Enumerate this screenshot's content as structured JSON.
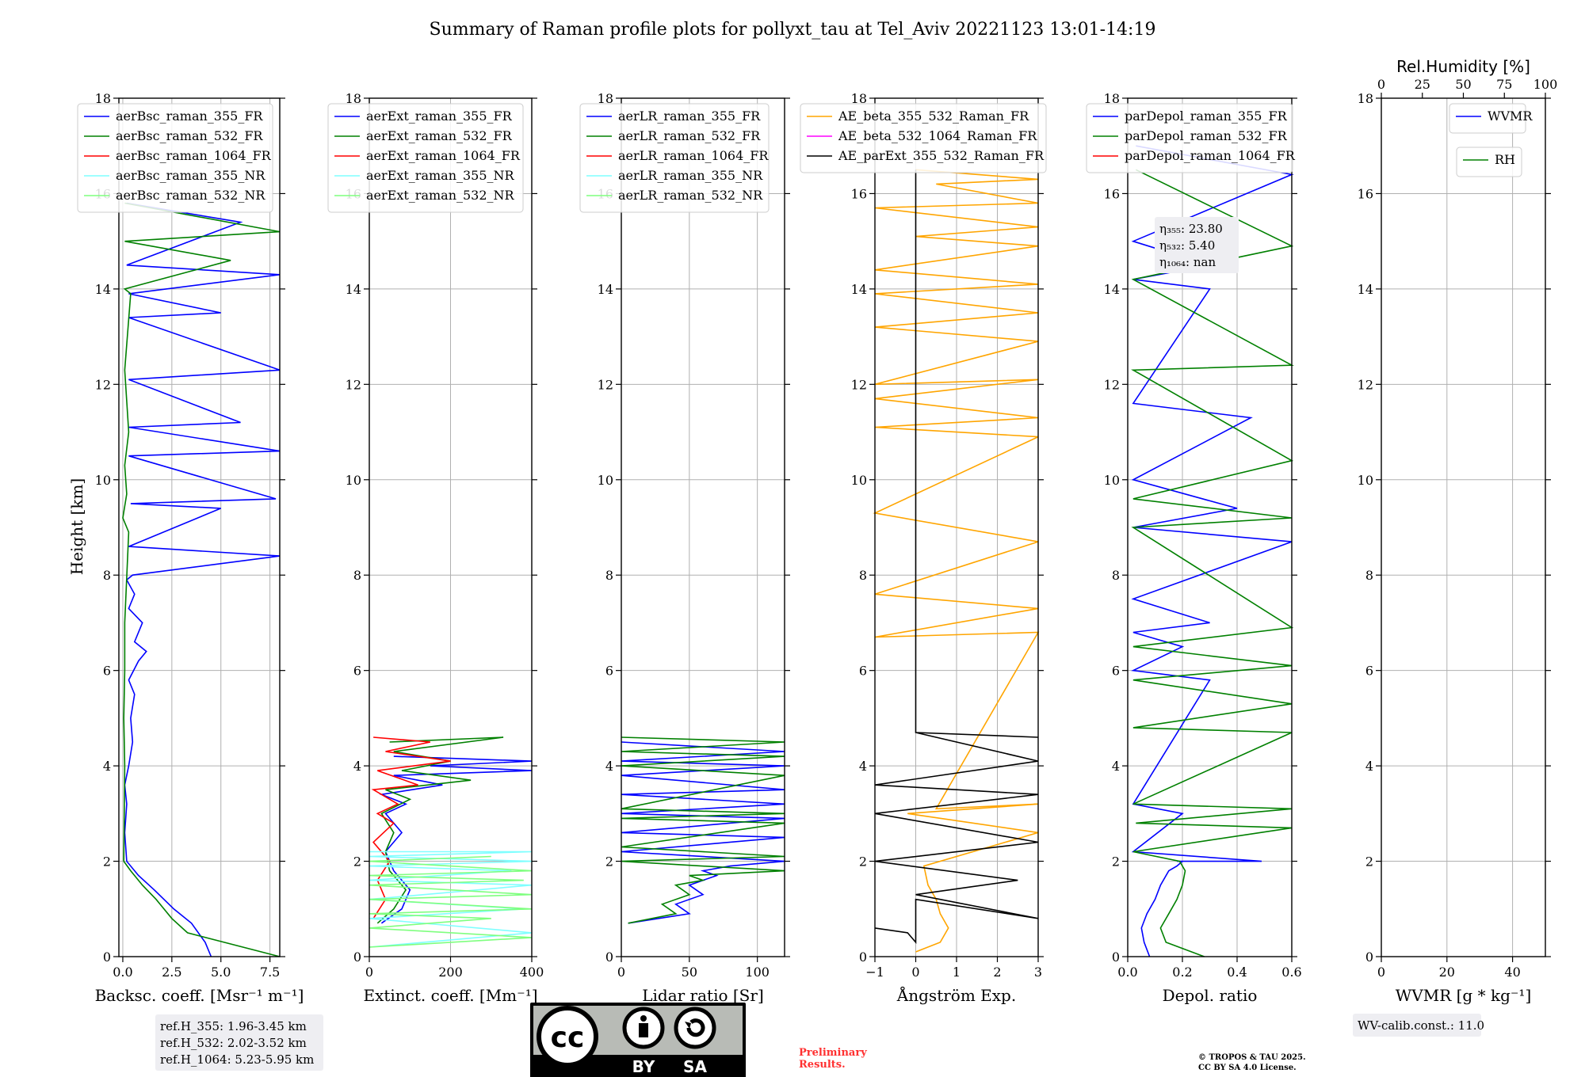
{
  "title": "Summary of Raman profile plots for pollyxt_tau at Tel_Aviv 20221123 13:01-14:19",
  "ylabel": "Height [km]",
  "ylim": [
    0,
    18
  ],
  "yticks": [
    0,
    2,
    4,
    6,
    8,
    10,
    12,
    14,
    16,
    18
  ],
  "colors": {
    "blue": "#0000ff",
    "green": "#008000",
    "red": "#ff0000",
    "cyan": "#7fffff",
    "lightgreen": "#7fff7f",
    "orange": "#ffa500",
    "magenta": "#ff00ff",
    "black": "#000000"
  },
  "chart_data": [
    {
      "type": "line",
      "xlabel": "Backsc. coeff. [Msr⁻¹ m⁻¹]",
      "xlim": [
        -0.2,
        8
      ],
      "xticks": [
        0,
        2.5,
        5,
        7.5
      ],
      "xtick_labels": [
        "0.0",
        "2.5",
        "5.0",
        "7.5"
      ],
      "legend": [
        "aerBsc_raman_355_FR",
        "aerBsc_raman_532_FR",
        "aerBsc_raman_1064_FR",
        "aerBsc_raman_355_NR",
        "aerBsc_raman_532_NR"
      ],
      "legend_colors": [
        "blue",
        "green",
        "red",
        "cyan",
        "lightgreen"
      ],
      "series": [
        {
          "name": "aerBsc_raman_355_FR",
          "color": "blue",
          "x": [
            4.5,
            4.2,
            3.5,
            2.6,
            1.6,
            0.8,
            0.2,
            0.1,
            0.2,
            0.1,
            0.3,
            0.5,
            0.4,
            0.6,
            0.3,
            0.8,
            1.2,
            0.6,
            1.0,
            0.3,
            0.6,
            0.2,
            0.5,
            8.0,
            0.3,
            5.0,
            0.4,
            7.8,
            0.3,
            8.0,
            0.3,
            6.0,
            0.3,
            8.0,
            0.3,
            5.0,
            0.3,
            8.0,
            0.2,
            6.0,
            0.2
          ],
          "y": [
            0.0,
            0.3,
            0.7,
            1.0,
            1.4,
            1.7,
            2.0,
            2.6,
            3.2,
            3.6,
            4.0,
            4.5,
            5.0,
            5.5,
            5.8,
            6.2,
            6.4,
            6.6,
            7.0,
            7.3,
            7.6,
            7.9,
            8.0,
            8.4,
            8.6,
            9.4,
            9.5,
            9.6,
            10.5,
            10.6,
            11.1,
            11.2,
            12.1,
            12.3,
            13.4,
            13.5,
            13.9,
            14.3,
            14.5,
            15.4,
            15.8
          ]
        },
        {
          "name": "aerBsc_raman_532_FR",
          "color": "green",
          "x": [
            8.0,
            3.3,
            2.5,
            1.7,
            1.0,
            0.4,
            0.05,
            0.1,
            0.05,
            0.1,
            0.1,
            0.3,
            0.0,
            0.2,
            0.1,
            0.3,
            0.1,
            0.4,
            0.1,
            5.5,
            0.1,
            8.0,
            0.1
          ],
          "y": [
            0.0,
            0.5,
            0.8,
            1.2,
            1.5,
            1.8,
            2.0,
            4.0,
            5.0,
            6.0,
            7.0,
            8.9,
            9.2,
            9.7,
            10.3,
            11.0,
            12.3,
            13.9,
            14.0,
            14.6,
            15.0,
            15.2,
            15.8
          ]
        }
      ],
      "annotation": [
        "ref.H_355: 1.96-3.45 km",
        "ref.H_532: 2.02-3.52 km",
        "ref.H_1064: 5.23-5.95 km"
      ]
    },
    {
      "type": "line",
      "xlabel": "Extinct. coeff. [Mm⁻¹]",
      "xlim": [
        0,
        400
      ],
      "xticks": [
        0,
        200,
        400
      ],
      "xtick_labels": [
        "0",
        "200",
        "400"
      ],
      "legend": [
        "aerExt_raman_355_FR",
        "aerExt_raman_532_FR",
        "aerExt_raman_1064_FR",
        "aerExt_raman_355_NR",
        "aerExt_raman_532_NR"
      ],
      "legend_colors": [
        "blue",
        "green",
        "red",
        "cyan",
        "lightgreen"
      ],
      "series": [
        {
          "name": "aerExt_raman_355_FR",
          "color": "blue",
          "x": [
            30,
            80,
            100,
            60,
            40,
            80,
            40,
            90,
            30,
            180,
            60,
            400,
            150,
            400,
            60
          ],
          "y": [
            0.7,
            1.0,
            1.4,
            1.8,
            2.2,
            2.6,
            3.0,
            3.2,
            3.4,
            3.6,
            3.8,
            3.9,
            4.0,
            4.1,
            4.2
          ]
        },
        {
          "name": "aerExt_raman_532_FR",
          "color": "green",
          "x": [
            20,
            60,
            90,
            50,
            40,
            60,
            30,
            100,
            40,
            250,
            80,
            200,
            60,
            330,
            50
          ],
          "y": [
            0.7,
            1.0,
            1.4,
            1.8,
            2.2,
            2.6,
            3.0,
            3.3,
            3.5,
            3.7,
            3.9,
            4.1,
            4.3,
            4.6,
            4.5
          ]
        },
        {
          "name": "aerExt_raman_1064_FR",
          "color": "red",
          "x": [
            10,
            40,
            20,
            50,
            10,
            60,
            20,
            70,
            10,
            120,
            20,
            200,
            40,
            150,
            10
          ],
          "y": [
            0.8,
            1.2,
            1.6,
            2.0,
            2.4,
            2.8,
            3.0,
            3.2,
            3.5,
            3.6,
            3.9,
            4.1,
            4.3,
            4.5,
            4.6
          ]
        },
        {
          "name": "aerExt_raman_355_NR",
          "color": "cyan",
          "x": [
            0,
            400,
            0,
            380,
            0,
            400,
            0,
            350,
            0,
            400,
            0,
            400,
            0
          ],
          "y": [
            0.2,
            0.5,
            0.8,
            1.0,
            1.2,
            1.5,
            1.6,
            1.8,
            1.9,
            2.0,
            2.1,
            2.2,
            2.2
          ]
        },
        {
          "name": "aerExt_raman_532_NR",
          "color": "lightgreen",
          "x": [
            0,
            400,
            0,
            300,
            0,
            400,
            0,
            400,
            0,
            380,
            0,
            400,
            0,
            300
          ],
          "y": [
            0.2,
            0.4,
            0.6,
            0.8,
            0.9,
            1.0,
            1.2,
            1.3,
            1.5,
            1.6,
            1.7,
            1.8,
            2.0,
            2.1
          ]
        }
      ]
    },
    {
      "type": "line",
      "xlabel": "Lidar ratio [Sr]",
      "xlim": [
        0,
        120
      ],
      "xticks": [
        0,
        50,
        100
      ],
      "xtick_labels": [
        "0",
        "50",
        "100"
      ],
      "legend": [
        "aerLR_raman_355_FR",
        "aerLR_raman_532_FR",
        "aerLR_raman_1064_FR",
        "aerLR_raman_355_NR",
        "aerLR_raman_532_NR"
      ],
      "legend_colors": [
        "blue",
        "green",
        "red",
        "cyan",
        "lightgreen"
      ],
      "series": [
        {
          "name": "aerLR_raman_355_FR",
          "color": "blue",
          "x": [
            5,
            50,
            40,
            60,
            50,
            70,
            60,
            80,
            120,
            0,
            120,
            0,
            120,
            0,
            120,
            0,
            120,
            0,
            120,
            0,
            120,
            0
          ],
          "y": [
            0.7,
            0.9,
            1.1,
            1.3,
            1.5,
            1.7,
            1.8,
            1.9,
            2.0,
            2.2,
            2.5,
            2.6,
            2.9,
            3.0,
            3.2,
            3.4,
            3.5,
            3.8,
            4.0,
            4.1,
            4.3,
            4.5
          ]
        },
        {
          "name": "aerLR_raman_532_FR",
          "color": "green",
          "x": [
            5,
            40,
            30,
            50,
            40,
            60,
            50,
            120,
            0,
            120,
            0,
            120,
            0,
            120,
            0,
            120,
            0,
            120,
            0,
            120,
            0
          ],
          "y": [
            0.7,
            0.9,
            1.1,
            1.3,
            1.5,
            1.6,
            1.7,
            1.8,
            2.0,
            2.1,
            2.3,
            2.8,
            2.9,
            3.0,
            3.1,
            3.8,
            4.0,
            4.2,
            4.3,
            4.5,
            4.6
          ]
        }
      ]
    },
    {
      "type": "line",
      "xlabel": "Ångström Exp.",
      "xlim": [
        -1,
        3
      ],
      "xticks": [
        -1,
        0,
        1,
        2,
        3
      ],
      "xtick_labels": [
        "−1",
        "0",
        "1",
        "2",
        "3"
      ],
      "legend": [
        "AE_beta_355_532_Raman_FR",
        "AE_beta_532_1064_Raman_FR",
        "AE_parExt_355_532_Raman_FR"
      ],
      "legend_colors": [
        "orange",
        "magenta",
        "black"
      ],
      "series": [
        {
          "name": "AE_beta_355_532_Raman_FR",
          "color": "orange",
          "x": [
            0.0,
            0.6,
            0.8,
            0.6,
            0.5,
            0.3,
            0.2,
            3.0,
            -0.2,
            3.0,
            0.5,
            3.0,
            -1.0,
            3.0,
            -1.0,
            3.0,
            -1.0,
            3.0,
            -1.0,
            3.0,
            -1.0,
            3.0,
            -1.0,
            3.0,
            -1.0,
            3.0,
            -1.0,
            3.0,
            -1.0,
            3.0,
            0.0,
            3.0,
            -1.0,
            3.0,
            0.5,
            3.0,
            0.0
          ],
          "y": [
            0.1,
            0.3,
            0.6,
            0.9,
            1.2,
            1.5,
            1.9,
            2.6,
            3.0,
            3.2,
            3.1,
            6.8,
            6.7,
            7.3,
            7.6,
            8.7,
            9.3,
            10.9,
            11.1,
            11.3,
            11.7,
            12.1,
            12.0,
            12.9,
            13.2,
            13.5,
            13.9,
            14.1,
            14.4,
            14.9,
            15.1,
            15.3,
            15.7,
            15.8,
            16.2,
            16.3,
            16.5
          ]
        },
        {
          "name": "AE_parExt_355_532_Raman_FR",
          "color": "black",
          "x": [
            -1.0,
            -0.2,
            0.0,
            0.0,
            3.0,
            0.0,
            2.5,
            -1.0,
            3.0,
            -1.0,
            3.0,
            -1.0,
            3.0,
            0.0,
            3.0,
            0.0,
            0.0
          ],
          "y": [
            0.6,
            0.5,
            0.3,
            1.2,
            0.8,
            1.3,
            1.6,
            2.0,
            2.4,
            3.0,
            3.4,
            3.6,
            4.1,
            4.7,
            4.6,
            4.7,
            16.5
          ]
        }
      ]
    },
    {
      "type": "line",
      "xlabel": "Depol. ratio",
      "xlim": [
        0,
        0.6
      ],
      "xticks": [
        0,
        0.2,
        0.4,
        0.6
      ],
      "xtick_labels": [
        "0.0",
        "0.2",
        "0.4",
        "0.6"
      ],
      "legend": [
        "parDepol_raman_355_FR",
        "parDepol_raman_532_FR",
        "parDepol_raman_1064_FR"
      ],
      "legend_colors": [
        "blue",
        "green",
        "red"
      ],
      "series": [
        {
          "name": "parDepol_raman_355_FR",
          "color": "blue",
          "x": [
            0.08,
            0.06,
            0.05,
            0.07,
            0.1,
            0.12,
            0.15,
            0.18,
            0.2,
            0.18,
            0.49,
            0.02,
            0.2,
            0.02,
            0.3,
            0.02,
            0.2,
            0.02,
            0.3,
            0.02,
            0.6,
            0.02,
            0.4,
            0.02,
            0.45,
            0.02,
            0.3,
            0.02,
            0.3,
            0.02,
            0.6,
            0.03
          ],
          "y": [
            0.0,
            0.3,
            0.6,
            0.9,
            1.2,
            1.5,
            1.8,
            1.9,
            2.0,
            2.0,
            2.0,
            2.2,
            3.0,
            3.2,
            5.8,
            6.0,
            6.5,
            6.8,
            7.0,
            7.5,
            8.7,
            9.0,
            9.4,
            10.0,
            11.3,
            11.6,
            14.0,
            14.2,
            14.5,
            15.0,
            16.4,
            17.0
          ]
        },
        {
          "name": "parDepol_raman_532_FR",
          "color": "green",
          "x": [
            0.28,
            0.14,
            0.12,
            0.15,
            0.18,
            0.2,
            0.21,
            0.19,
            0.02,
            0.6,
            0.03,
            0.6,
            0.02,
            0.6,
            0.02,
            0.6,
            0.02,
            0.6,
            0.02,
            0.6,
            0.02,
            0.6,
            0.02,
            0.6,
            0.02,
            0.6,
            0.02,
            0.6,
            0.03
          ],
          "y": [
            0.0,
            0.3,
            0.6,
            0.9,
            1.2,
            1.5,
            1.8,
            2.0,
            2.2,
            2.7,
            2.8,
            3.1,
            3.2,
            4.7,
            4.8,
            5.3,
            5.8,
            6.1,
            6.5,
            6.9,
            9.0,
            9.2,
            9.6,
            10.4,
            12.3,
            12.4,
            14.2,
            14.9,
            16.5
          ]
        }
      ],
      "annotation": [
        "η₃₅₅: 23.80",
        "η₅₃₂: 5.40",
        "η₁₀₆₄: nan"
      ]
    },
    {
      "type": "line",
      "xlabel": "WVMR [g * kg⁻¹]",
      "xlim": [
        0,
        50
      ],
      "xticks": [
        0,
        20,
        40
      ],
      "xtick_labels": [
        "0",
        "20",
        "40"
      ],
      "top_xlabel": "Rel.Humidity [%]",
      "top_xlim": [
        0,
        100
      ],
      "top_xticks": [
        0,
        25,
        50,
        75,
        100
      ],
      "top_xtick_labels": [
        "0",
        "25",
        "50",
        "75",
        "100"
      ],
      "legend": [
        "WVMR"
      ],
      "legend_colors": [
        "blue"
      ],
      "legend2": [
        "RH"
      ],
      "legend2_colors": [
        "green"
      ],
      "series": [],
      "annotation": [
        "WV-calib.const.: 11.0"
      ]
    }
  ],
  "license": {
    "cc": "cc",
    "by": "BY",
    "sa": "SA",
    "preliminary": [
      "Preliminary",
      "Results."
    ],
    "copyright": [
      "© TROPOS & TAU 2025.",
      "CC BY SA 4.0 License."
    ]
  }
}
